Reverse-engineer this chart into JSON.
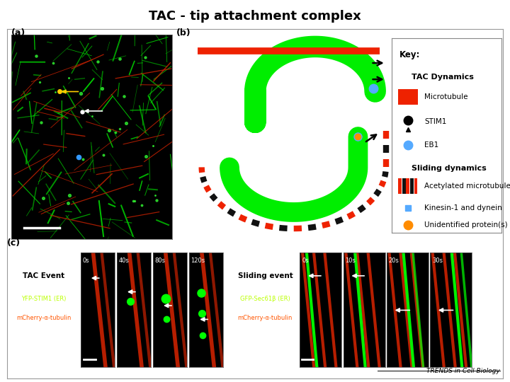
{
  "title": "TAC - tip attachment complex",
  "title_fontsize": 13,
  "title_fontweight": "bold",
  "background_color": "#ffffff",
  "panel_a_label": "(a)",
  "panel_b_label": "(b)",
  "panel_c_label": "(c)",
  "key_title": "Key:",
  "key_tac_dynamics": "TAC Dynamics",
  "key_microtubule": "Microtubule",
  "key_stim1": "STIM1",
  "key_eb1": "EB1",
  "key_sliding_dynamics": "Sliding dynamics",
  "key_acetylated": "Acetylated microtubule",
  "key_kinesin": "Kinesin-1 and dynein",
  "key_unidentified": "Unidentified protein(s)",
  "tac_event_label": "TAC Event",
  "tac_yfp": "YFP-STIM1 (ER)",
  "tac_mcherry": "mCherry-α-tubulin",
  "tac_times": [
    "0s",
    "40s",
    "80s",
    "120s"
  ],
  "sliding_event_label": "Sliding event",
  "sliding_gfp": "GFP-Sec61β (ER)",
  "sliding_mcherry": "mCherry-α-tubulin",
  "sliding_times": [
    "0s",
    "10s",
    "20s",
    "30s"
  ],
  "trends_label": "TRENDS in Cell Biology",
  "green_color": "#00ee00",
  "red_color": "#ee2200",
  "orange_color": "#ff8c00",
  "blue_color": "#55aaff",
  "yfp_color": "#bbff00",
  "mcherry_color": "#ff5500"
}
